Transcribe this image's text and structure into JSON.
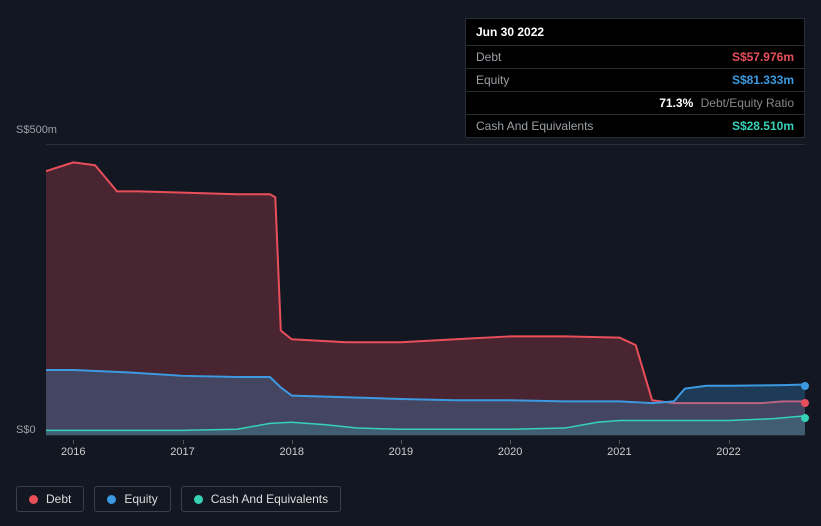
{
  "tooltip": {
    "date": "Jun 30 2022",
    "rows": [
      {
        "label": "Debt",
        "value": "S$57.976m",
        "color": "#e94f5a"
      },
      {
        "label": "Equity",
        "value": "S$81.333m",
        "color": "#3b9ae1"
      },
      {
        "label": "",
        "value": "71.3%",
        "sub": "Debt/Equity Ratio",
        "color": "#ffffff"
      },
      {
        "label": "Cash And Equivalents",
        "value": "S$28.510m",
        "color": "#36d1b7"
      }
    ]
  },
  "chart": {
    "type": "area-line",
    "background": "#131722",
    "grid_color": "#2a2e39",
    "x_range": [
      2015.75,
      2022.7
    ],
    "y_range": [
      0,
      500
    ],
    "y_ticks": [
      {
        "v": 0,
        "label": "S$0"
      },
      {
        "v": 500,
        "label": "S$500m"
      }
    ],
    "x_ticks": [
      2016,
      2017,
      2018,
      2019,
      2020,
      2021,
      2022
    ],
    "series": [
      {
        "name": "Debt",
        "color": "#e94f5a",
        "fill": "rgba(233,79,90,0.25)",
        "line_width": 2,
        "data": [
          [
            2015.75,
            455
          ],
          [
            2016.0,
            470
          ],
          [
            2016.2,
            465
          ],
          [
            2016.4,
            420
          ],
          [
            2016.6,
            420
          ],
          [
            2017.0,
            418
          ],
          [
            2017.5,
            415
          ],
          [
            2017.8,
            415
          ],
          [
            2017.85,
            410
          ],
          [
            2017.9,
            180
          ],
          [
            2018.0,
            165
          ],
          [
            2018.5,
            160
          ],
          [
            2019.0,
            160
          ],
          [
            2019.5,
            165
          ],
          [
            2020.0,
            170
          ],
          [
            2020.5,
            170
          ],
          [
            2021.0,
            168
          ],
          [
            2021.15,
            155
          ],
          [
            2021.3,
            60
          ],
          [
            2021.5,
            55
          ],
          [
            2021.7,
            55
          ],
          [
            2022.0,
            55
          ],
          [
            2022.3,
            55
          ],
          [
            2022.5,
            58
          ],
          [
            2022.7,
            58
          ]
        ]
      },
      {
        "name": "Equity",
        "color": "#3b9ae1",
        "fill": "rgba(59,154,225,0.28)",
        "line_width": 2,
        "data": [
          [
            2015.75,
            112
          ],
          [
            2016.0,
            112
          ],
          [
            2016.5,
            108
          ],
          [
            2017.0,
            102
          ],
          [
            2017.5,
            100
          ],
          [
            2017.8,
            100
          ],
          [
            2017.9,
            82
          ],
          [
            2018.0,
            68
          ],
          [
            2018.5,
            65
          ],
          [
            2019.0,
            62
          ],
          [
            2019.5,
            60
          ],
          [
            2020.0,
            60
          ],
          [
            2020.5,
            58
          ],
          [
            2021.0,
            58
          ],
          [
            2021.3,
            55
          ],
          [
            2021.5,
            58
          ],
          [
            2021.6,
            80
          ],
          [
            2021.8,
            85
          ],
          [
            2022.0,
            85
          ],
          [
            2022.5,
            86
          ],
          [
            2022.7,
            87
          ]
        ]
      },
      {
        "name": "Cash And Equivalents",
        "color": "#36d1b7",
        "fill": "rgba(54,209,183,0.18)",
        "line_width": 1.5,
        "data": [
          [
            2015.75,
            8
          ],
          [
            2016.0,
            8
          ],
          [
            2016.5,
            8
          ],
          [
            2017.0,
            8
          ],
          [
            2017.5,
            10
          ],
          [
            2017.8,
            20
          ],
          [
            2018.0,
            22
          ],
          [
            2018.3,
            18
          ],
          [
            2018.6,
            12
          ],
          [
            2019.0,
            10
          ],
          [
            2019.5,
            10
          ],
          [
            2020.0,
            10
          ],
          [
            2020.5,
            12
          ],
          [
            2020.8,
            22
          ],
          [
            2021.0,
            25
          ],
          [
            2021.3,
            25
          ],
          [
            2021.5,
            25
          ],
          [
            2022.0,
            25
          ],
          [
            2022.4,
            28
          ],
          [
            2022.7,
            33
          ]
        ]
      }
    ]
  },
  "legend": [
    "Debt",
    "Equity",
    "Cash And Equivalents"
  ],
  "colors": {
    "debt": "#e94f5a",
    "equity": "#3b9ae1",
    "cash": "#36d1b7"
  }
}
